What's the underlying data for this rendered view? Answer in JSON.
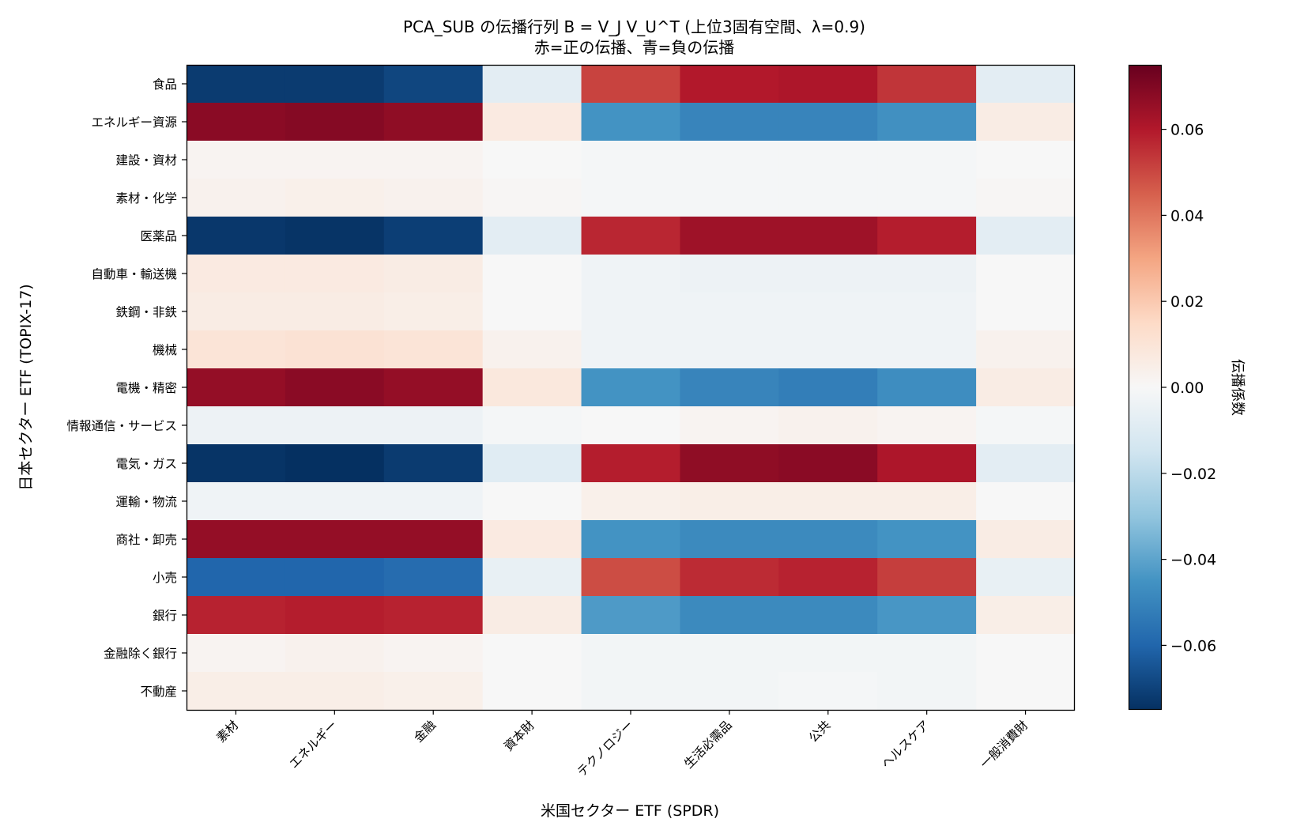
{
  "chart_data": {
    "type": "heatmap",
    "title": "PCA_SUB の伝播行列 B = V_J V_U^T (上位3固有空間、λ=0.9)",
    "subtitle": "赤=正の伝播、青=負の伝播",
    "xlabel": "米国セクター ETF (SPDR)",
    "ylabel": "日本セクター ETF (TOPIX-17)",
    "x_categories": [
      "素材",
      "エネルギー",
      "金融",
      "資本財",
      "テクノロジー",
      "生活必需品",
      "公共",
      "ヘルスケア",
      "一般消費財"
    ],
    "y_categories": [
      "食品",
      "エネルギー資源",
      "建設・資材",
      "素材・化学",
      "医薬品",
      "自動車・輸送機",
      "鉄鋼・非鉄",
      "機械",
      "電機・精密",
      "情報通信・サービス",
      "電気・ガス",
      "運輸・物流",
      "商社・卸売",
      "小売",
      "銀行",
      "金融除く銀行",
      "不動産"
    ],
    "values": [
      [
        -0.072,
        -0.072,
        -0.069,
        -0.008,
        0.051,
        0.06,
        0.061,
        0.054,
        -0.008
      ],
      [
        0.068,
        0.069,
        0.067,
        0.007,
        -0.045,
        -0.05,
        -0.05,
        -0.046,
        0.006
      ],
      [
        0.002,
        0.002,
        0.002,
        0.0,
        -0.001,
        -0.001,
        -0.001,
        -0.001,
        0.0
      ],
      [
        0.003,
        0.004,
        0.003,
        0.001,
        -0.001,
        -0.001,
        -0.001,
        -0.001,
        0.001
      ],
      [
        -0.073,
        -0.074,
        -0.071,
        -0.008,
        0.057,
        0.064,
        0.064,
        0.059,
        -0.008
      ],
      [
        0.007,
        0.007,
        0.006,
        0.0,
        -0.003,
        -0.004,
        -0.004,
        -0.004,
        0.0
      ],
      [
        0.006,
        0.006,
        0.005,
        0.0,
        -0.003,
        -0.003,
        -0.003,
        -0.003,
        0.0
      ],
      [
        0.01,
        0.011,
        0.01,
        0.003,
        -0.003,
        -0.003,
        -0.003,
        -0.003,
        0.003
      ],
      [
        0.066,
        0.068,
        0.066,
        0.008,
        -0.045,
        -0.05,
        -0.052,
        -0.047,
        0.006
      ],
      [
        -0.004,
        -0.004,
        -0.004,
        -0.001,
        0.0,
        0.002,
        0.003,
        0.002,
        -0.001
      ],
      [
        -0.074,
        -0.075,
        -0.072,
        -0.009,
        0.059,
        0.067,
        0.068,
        0.061,
        -0.008
      ],
      [
        -0.003,
        -0.003,
        -0.003,
        0.0,
        0.004,
        0.005,
        0.005,
        0.005,
        0.0
      ],
      [
        0.066,
        0.066,
        0.066,
        0.007,
        -0.045,
        -0.048,
        -0.048,
        -0.045,
        0.006
      ],
      [
        -0.06,
        -0.06,
        -0.058,
        -0.006,
        0.049,
        0.056,
        0.058,
        0.052,
        -0.006
      ],
      [
        0.058,
        0.059,
        0.058,
        0.006,
        -0.043,
        -0.048,
        -0.048,
        -0.044,
        0.005
      ],
      [
        0.002,
        0.003,
        0.002,
        0.0,
        -0.002,
        -0.002,
        -0.002,
        -0.002,
        0.0
      ],
      [
        0.005,
        0.005,
        0.004,
        0.0,
        -0.002,
        -0.002,
        -0.001,
        -0.002,
        0.0
      ]
    ],
    "colormap": "RdBu_r",
    "vmin": -0.075,
    "vmax": 0.075,
    "colorbar": {
      "label": "伝播係数",
      "ticks": [
        0.06,
        0.04,
        0.02,
        0.0,
        -0.02,
        -0.04,
        -0.06
      ],
      "tick_labels": [
        "0.06",
        "0.04",
        "0.02",
        "0.00",
        "−0.02",
        "−0.04",
        "−0.06"
      ]
    },
    "grid": false
  }
}
